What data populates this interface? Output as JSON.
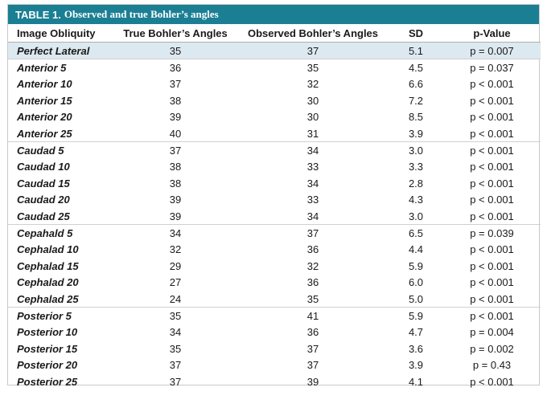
{
  "table": {
    "title_label": "TABLE 1.",
    "title_text": "Observed and true Bohler’s angles",
    "headers": [
      "Image Obliquity",
      "True Bohler’s Angles",
      "Observed Bohler’s Angles",
      "SD",
      "p-Value"
    ],
    "rows": [
      [
        "Perfect Lateral",
        "35",
        "37",
        "5.1",
        "p = 0.007"
      ],
      [
        "Anterior 5",
        "36",
        "35",
        "4.5",
        "p = 0.037"
      ],
      [
        "Anterior 10",
        "37",
        "32",
        "6.6",
        "p < 0.001"
      ],
      [
        "Anterior 15",
        "38",
        "30",
        "7.2",
        "p < 0.001"
      ],
      [
        "Anterior 20",
        "39",
        "30",
        "8.5",
        "p < 0.001"
      ],
      [
        "Anterior 25",
        "40",
        "31",
        "3.9",
        "p < 0.001"
      ],
      [
        "Caudad 5",
        "37",
        "34",
        "3.0",
        "p < 0.001"
      ],
      [
        "Caudad 10",
        "38",
        "33",
        "3.3",
        "p < 0.001"
      ],
      [
        "Caudad 15",
        "38",
        "34",
        "2.8",
        "p < 0.001"
      ],
      [
        "Caudad 20",
        "39",
        "33",
        "4.3",
        "p < 0.001"
      ],
      [
        "Caudad 25",
        "39",
        "34",
        "3.0",
        "p < 0.001"
      ],
      [
        "Cepahald 5",
        "34",
        "37",
        "6.5",
        "p = 0.039"
      ],
      [
        "Cephalad 10",
        "32",
        "36",
        "4.4",
        "p < 0.001"
      ],
      [
        "Cephalad 15",
        "29",
        "32",
        "5.9",
        "p < 0.001"
      ],
      [
        "Cephalad 20",
        "27",
        "36",
        "6.0",
        "p < 0.001"
      ],
      [
        "Cephalad 25",
        "24",
        "35",
        "5.0",
        "p < 0.001"
      ],
      [
        "Posterior 5",
        "35",
        "41",
        "5.9",
        "p < 0.001"
      ],
      [
        "Posterior 10",
        "34",
        "36",
        "4.7",
        "p = 0.004"
      ],
      [
        "Posterior 15",
        "35",
        "37",
        "3.6",
        "p = 0.002"
      ],
      [
        "Posterior 20",
        "37",
        "37",
        "3.9",
        "p = 0.43"
      ],
      [
        "Posterior 25",
        "37",
        "39",
        "4.1",
        "p < 0.001"
      ]
    ]
  },
  "colors": {
    "title_bar": "#1b7f94",
    "highlight_row": "#dde9f0"
  }
}
